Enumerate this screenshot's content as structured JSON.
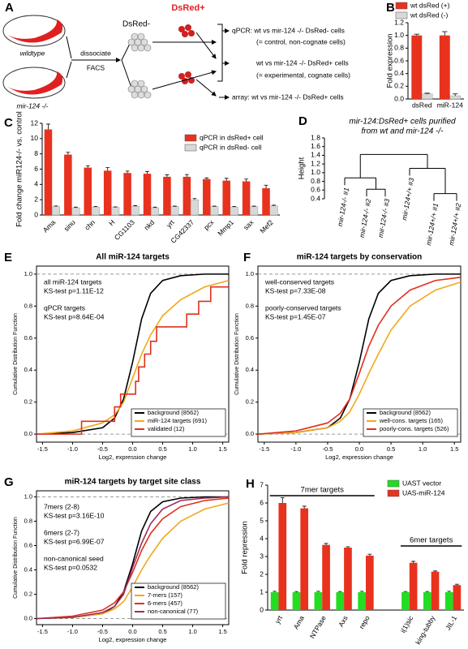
{
  "schematic": {
    "panel": "A",
    "wildtype": "wildtype",
    "mutant": "mir-124 -/-",
    "step1": "dissociate",
    "step2": "FACS",
    "neg": "DsRed-",
    "pos": "DsRed+",
    "rows": [
      "qPCR: wt vs mir-124 -/- DsRed- cells",
      "(= control, non-cognate cells)",
      "wt vs mir-124 -/- DsRed+ cells",
      "(= experimental, cognate cells)",
      "array: wt vs mir-124 -/- DsRed+ cells"
    ]
  },
  "chart_data": [
    {
      "panel": "B",
      "type": "bar",
      "ylabel": "Fold expression",
      "categories": [
        "dsRed",
        "miR-124"
      ],
      "series": [
        {
          "name": "wt dsRed (+)",
          "color": "#e8321e",
          "values": [
            1.0,
            1.0
          ],
          "errors": [
            0.02,
            0.06
          ]
        },
        {
          "name": "wt dsRed (-)",
          "color": "#d8d8d8",
          "values": [
            0.08,
            0.05
          ],
          "errors": [
            0.01,
            0.03
          ]
        }
      ],
      "ylim": [
        0,
        1.2
      ],
      "yticks": [
        {
          "value": 0,
          "label": "0.0"
        },
        0.2,
        0.4,
        0.6,
        0.8,
        {
          "value": 1,
          "label": "1.0"
        },
        1.2
      ]
    },
    {
      "panel": "C",
      "type": "bar",
      "ylabel": "Fold change miR124-/- vs. control",
      "categories": [
        "Ama",
        "sinu",
        "chn",
        "H",
        "CG1103",
        "nkd",
        "yrt",
        "CG42337",
        "pcx",
        "Mmp1",
        "sax",
        "Mef2"
      ],
      "series": [
        {
          "name": "qPCR in dsRed+ cell",
          "color": "#e8321e",
          "values": [
            11.2,
            7.9,
            6.2,
            5.8,
            5.5,
            5.4,
            5.0,
            5.0,
            4.7,
            4.5,
            4.4,
            3.5
          ],
          "errors": [
            0.7,
            0.3,
            0.25,
            0.4,
            0.25,
            0.3,
            0.25,
            0.3,
            0.15,
            0.3,
            0.3,
            0.4
          ]
        },
        {
          "name": "qPCR in dsRed- cell",
          "color": "#d8d8d8",
          "values": [
            1.1,
            0.95,
            1.05,
            1.0,
            1.15,
            0.95,
            1.1,
            2.0,
            1.1,
            1.05,
            1.1,
            1.2
          ],
          "errors": [
            0.08,
            0.08,
            0.08,
            0.06,
            0.08,
            0.08,
            0.06,
            0.15,
            0.06,
            0.08,
            0.06,
            0.08
          ]
        }
      ],
      "ylim": [
        0,
        12
      ],
      "yticks": [
        0,
        2,
        4,
        6,
        8,
        10,
        12
      ]
    },
    {
      "panel": "D",
      "type": "dendrogram",
      "title": "mir-124:DsRed+ cells purified",
      "subtitle": "from wt and mir-124 -/-",
      "ylabel": "Height",
      "leaves": [
        "mir-124-/- #1",
        "mir-124-/- #2",
        "mir-124-/- #3",
        "mir-124+/+ #3",
        "mir-124+/+ #1",
        "mir-124+/+ #2"
      ],
      "merges": [
        {
          "height": 0.62
        },
        {
          "height": 0.88
        },
        {
          "height": 0.52
        },
        {
          "height": 1.1
        },
        {
          "height": 1.42
        }
      ],
      "ylim": [
        0.4,
        1.8
      ],
      "yticks": [
        0.4,
        0.6,
        0.8,
        {
          "value": 1,
          "label": "1.0"
        },
        1.2,
        1.4,
        1.6,
        1.8
      ]
    },
    {
      "panel": "E",
      "type": "cdf",
      "title": "All miR-124 targets",
      "xlabel": "Log2, expression change",
      "ylabel": "Cumulative Distribution Function",
      "annotations": [
        "all miR-124 targets",
        "KS-test  p=1.11E-12",
        "qPCR targets",
        "KS-test  p=8.64E-04"
      ],
      "series": [
        {
          "name": "background (8562)",
          "color": "#000000",
          "x": [
            -1.6,
            -1.0,
            -0.5,
            -0.3,
            -0.15,
            0,
            0.15,
            0.3,
            0.5,
            0.8,
            1.2,
            1.6
          ],
          "values": [
            0,
            0.01,
            0.04,
            0.1,
            0.22,
            0.45,
            0.72,
            0.88,
            0.96,
            0.99,
            1.0,
            1.0
          ]
        },
        {
          "name": "miR-124 targets (691)",
          "color": "#f0a81c",
          "x": [
            -1.6,
            -1.0,
            -0.5,
            -0.3,
            -0.15,
            0,
            0.15,
            0.3,
            0.5,
            0.8,
            1.2,
            1.6
          ],
          "values": [
            0,
            0.02,
            0.07,
            0.12,
            0.2,
            0.35,
            0.5,
            0.62,
            0.74,
            0.84,
            0.92,
            0.96
          ]
        },
        {
          "name": "validated (12)",
          "color": "#e0301e",
          "x": [
            -1.6,
            -0.85,
            -0.85,
            -0.3,
            -0.3,
            -0.2,
            -0.2,
            0.05,
            0.05,
            0.1,
            0.1,
            0.2,
            0.2,
            0.3,
            0.3,
            0.4,
            0.4,
            0.9,
            0.9,
            1.1,
            1.1,
            1.3,
            1.3,
            1.6
          ],
          "values": [
            0,
            0,
            0.08,
            0.08,
            0.17,
            0.17,
            0.25,
            0.25,
            0.33,
            0.33,
            0.42,
            0.42,
            0.5,
            0.5,
            0.58,
            0.58,
            0.67,
            0.67,
            0.75,
            0.75,
            0.83,
            0.83,
            0.92,
            0.92
          ]
        }
      ],
      "reference_lines": [
        0,
        1
      ],
      "xlim": [
        -1.6,
        1.6
      ],
      "ylim": [
        -0.05,
        1.05
      ],
      "xticks": [
        -1.5,
        {
          "value": -1,
          "label": "-1.0"
        },
        -0.5,
        {
          "value": 0,
          "label": "0.0"
        },
        0.5,
        {
          "value": 1,
          "label": "1.0"
        },
        1.5
      ],
      "yticks": [
        {
          "value": 0,
          "label": "0.0"
        },
        0.2,
        0.4,
        0.6,
        0.8,
        {
          "value": 1,
          "label": "1.0"
        }
      ]
    },
    {
      "panel": "F",
      "type": "cdf",
      "title": "miR-124 targets by conservation",
      "xlabel": "Log2, expression change",
      "ylabel": "Cumulative Distribution Function",
      "annotations": [
        "well-conserved targets",
        "KS-test  p=7.33E-08",
        "poorly-conserved targets",
        "KS-test  p=1.45E-07"
      ],
      "series": [
        {
          "name": "background (8562)",
          "color": "#000000",
          "x": [
            -1.6,
            -1.0,
            -0.5,
            -0.3,
            -0.15,
            0,
            0.15,
            0.3,
            0.5,
            0.8,
            1.2,
            1.6
          ],
          "values": [
            0,
            0.01,
            0.04,
            0.1,
            0.22,
            0.45,
            0.72,
            0.88,
            0.96,
            0.99,
            1.0,
            1.0
          ]
        },
        {
          "name": "well-cons. targets (165)",
          "color": "#f0a81c",
          "x": [
            -1.6,
            -1.0,
            -0.5,
            -0.3,
            -0.15,
            0,
            0.15,
            0.3,
            0.5,
            0.8,
            1.2,
            1.6
          ],
          "values": [
            0,
            0.01,
            0.04,
            0.08,
            0.14,
            0.25,
            0.38,
            0.5,
            0.65,
            0.8,
            0.9,
            0.95
          ]
        },
        {
          "name": "poorly-cons. targets (526)",
          "color": "#e0301e",
          "x": [
            -1.6,
            -1.0,
            -0.5,
            -0.3,
            -0.15,
            0,
            0.15,
            0.3,
            0.5,
            0.8,
            1.2,
            1.6
          ],
          "values": [
            0,
            0.02,
            0.07,
            0.13,
            0.22,
            0.38,
            0.55,
            0.68,
            0.8,
            0.9,
            0.96,
            0.98
          ]
        }
      ],
      "reference_lines": [
        0,
        1
      ],
      "xlim": [
        -1.6,
        1.6
      ],
      "ylim": [
        -0.05,
        1.05
      ],
      "xticks": [
        -1.5,
        {
          "value": -1,
          "label": "-1.0"
        },
        -0.5,
        {
          "value": 0,
          "label": "0.0"
        },
        0.5,
        {
          "value": 1,
          "label": "1.0"
        },
        1.5
      ],
      "yticks": [
        {
          "value": 0,
          "label": "0.0"
        },
        0.2,
        0.4,
        0.6,
        0.8,
        {
          "value": 1,
          "label": "1.0"
        }
      ]
    },
    {
      "panel": "G",
      "type": "cdf",
      "title": "miR-124 targets by target site class",
      "xlabel": "Log2, expression change",
      "ylabel": "Cumulative Distribution Function",
      "annotations": [
        "7mers (2-8)",
        "KS-test  p=3.16E-10",
        "6mers (2-7)",
        "KS-test  p=6.99E-07",
        "non-canonical seed",
        "KS-test  p=0.0532"
      ],
      "series": [
        {
          "name": "background (8562)",
          "color": "#000000",
          "x": [
            -1.6,
            -1.0,
            -0.5,
            -0.3,
            -0.15,
            0,
            0.15,
            0.3,
            0.5,
            0.8,
            1.2,
            1.6
          ],
          "values": [
            0,
            0.01,
            0.04,
            0.1,
            0.22,
            0.45,
            0.72,
            0.88,
            0.96,
            0.99,
            1.0,
            1.0
          ]
        },
        {
          "name": "7-mers (157)",
          "color": "#f0a81c",
          "x": [
            -1.6,
            -1.0,
            -0.5,
            -0.3,
            -0.15,
            0,
            0.15,
            0.3,
            0.5,
            0.8,
            1.2,
            1.6
          ],
          "values": [
            0,
            0.01,
            0.04,
            0.08,
            0.14,
            0.26,
            0.4,
            0.52,
            0.66,
            0.8,
            0.9,
            0.95
          ]
        },
        {
          "name": "6-mers (457)",
          "color": "#e0301e",
          "x": [
            -1.6,
            -1.0,
            -0.5,
            -0.3,
            -0.15,
            0,
            0.15,
            0.3,
            0.5,
            0.8,
            1.2,
            1.6
          ],
          "values": [
            0,
            0.02,
            0.07,
            0.13,
            0.22,
            0.38,
            0.56,
            0.7,
            0.82,
            0.92,
            0.97,
            0.99
          ]
        },
        {
          "name": "non-canonical (77)",
          "color": "#9b2d5b",
          "x": [
            -1.6,
            -1.0,
            -0.5,
            -0.3,
            -0.15,
            0,
            0.15,
            0.3,
            0.5,
            0.8,
            1.2,
            1.6
          ],
          "values": [
            0,
            0.01,
            0.05,
            0.1,
            0.2,
            0.42,
            0.62,
            0.78,
            0.9,
            0.97,
            0.99,
            1.0
          ]
        }
      ],
      "reference_lines": [
        0,
        1
      ],
      "xlim": [
        -1.6,
        1.6
      ],
      "ylim": [
        -0.05,
        1.05
      ],
      "xticks": [
        -1.5,
        {
          "value": -1,
          "label": "-1.0"
        },
        -0.5,
        {
          "value": 0,
          "label": "0.0"
        },
        0.5,
        {
          "value": 1,
          "label": "1.0"
        },
        1.5
      ],
      "yticks": [
        {
          "value": 0,
          "label": "0.0"
        },
        0.2,
        0.4,
        0.6,
        0.8,
        {
          "value": 1,
          "label": "1.0"
        }
      ]
    },
    {
      "panel": "H",
      "type": "bar",
      "ylabel": "Fold repression",
      "categories": [
        "yrt",
        "Ama",
        "NTPase",
        "Axs",
        "repo",
        null,
        "i(1)sic",
        "king-tubby",
        "JIL-1"
      ],
      "group_labels": [
        "7mer targets",
        "6mer targets"
      ],
      "series": [
        {
          "name": "UAST vector",
          "color": "#22dd22",
          "values": [
            1.0,
            1.0,
            1.0,
            1.0,
            1.0,
            null,
            1.0,
            1.0,
            1.0
          ],
          "errors": [
            0.05,
            0.04,
            0.05,
            0.04,
            0.05,
            null,
            0.04,
            0.04,
            0.05
          ]
        },
        {
          "name": "UAS-miR-124",
          "color": "#e8321e",
          "values": [
            6.0,
            5.7,
            3.65,
            3.5,
            3.05,
            null,
            2.65,
            2.15,
            1.4
          ],
          "errors": [
            0.3,
            0.12,
            0.08,
            0.05,
            0.08,
            null,
            0.08,
            0.04,
            0.05
          ]
        }
      ],
      "ylim": [
        0,
        7
      ],
      "yticks": [
        0,
        1,
        2,
        3,
        4,
        5,
        6,
        7
      ]
    }
  ]
}
